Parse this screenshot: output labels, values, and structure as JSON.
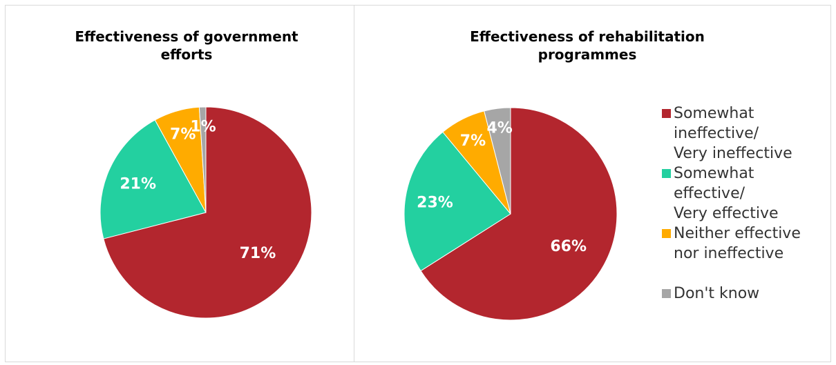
{
  "chart_data": [
    {
      "type": "pie",
      "title": "Effectiveness of government efforts",
      "categories": [
        "Somewhat ineffective/ Very ineffective",
        "Somewhat effective/ Very effective",
        "Neither effective nor ineffective",
        "Don't know"
      ],
      "values": [
        71,
        21,
        7,
        1
      ],
      "data_labels": [
        "71%",
        "21%",
        "7%",
        "1%"
      ],
      "start_angle_deg": 0,
      "direction": "clockwise"
    },
    {
      "type": "pie",
      "title": "Effectiveness of rehabilitation programmes",
      "categories": [
        "Somewhat ineffective/ Very ineffective",
        "Somewhat effective/ Very effective",
        "Neither effective nor ineffective",
        "Don't know"
      ],
      "values": [
        66,
        23,
        7,
        4
      ],
      "data_labels": [
        "66%",
        "23%",
        "7%",
        "4%"
      ],
      "start_angle_deg": 0,
      "direction": "clockwise"
    }
  ],
  "legend": {
    "position": "right",
    "items": [
      {
        "label": "Somewhat\nineffective/\nVery ineffective",
        "color": "#b3262e"
      },
      {
        "label": "Somewhat\neffective/\nVery effective",
        "color": "#23d0a0"
      },
      {
        "label": "Neither effective\nnor ineffective",
        "color": "#ffab00"
      },
      {
        "label": "Don't know",
        "color": "#a6a6a6"
      }
    ]
  },
  "colors": [
    "#b3262e",
    "#23d0a0",
    "#ffab00",
    "#a6a6a6"
  ]
}
